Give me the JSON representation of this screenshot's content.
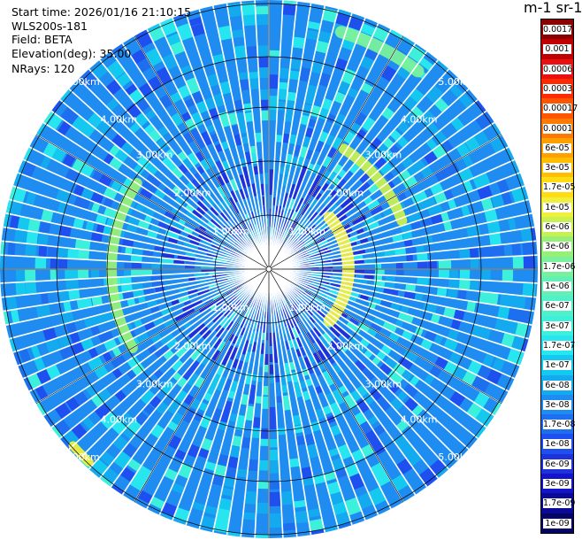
{
  "info": {
    "start_time": "Start time: 2026/01/16 21:10:15",
    "instrument": "WLS200s-181",
    "field": "Field: BETA",
    "elevation": "Elevation(deg): 35.00",
    "nrays": "NRays: 120"
  },
  "colorbar": {
    "title": "m-1 sr-1",
    "levels": [
      "0.0017",
      "0.001",
      "0.0006",
      "0.0003",
      "0.00017",
      "0.0001",
      "6e-05",
      "3e-05",
      "1.7e-05",
      "1e-05",
      "6e-06",
      "3e-06",
      "1.7e-06",
      "1e-06",
      "6e-07",
      "3e-07",
      "1.7e-07",
      "1e-07",
      "6e-08",
      "3e-08",
      "1.7e-08",
      "1e-08",
      "6e-09",
      "3e-09",
      "1.7e-09",
      "1e-09"
    ],
    "colors": [
      "#8b0000",
      "#c00000",
      "#e81010",
      "#ff2a00",
      "#ff5500",
      "#ff7a00",
      "#ffa000",
      "#ffbe00",
      "#ffdc14",
      "#f0f03c",
      "#c8f050",
      "#96f078",
      "#78f09c",
      "#64f0b4",
      "#50f0c8",
      "#3cf0dc",
      "#28e6f0",
      "#14c8f0",
      "#14aaf0",
      "#1e8cf0",
      "#1e6ef0",
      "#1e50f0",
      "#1e32dc",
      "#1414c8",
      "#0a0a96",
      "#050564"
    ]
  },
  "range_rings": {
    "labels": [
      "1.00km",
      "2.00km",
      "3.00km",
      "4.00km",
      "5.00km"
    ]
  },
  "echoes": [
    {
      "name": "near-arc-east",
      "color": "#f0f03c"
    },
    {
      "name": "mid-arc-northeast",
      "color": "#c8f050"
    },
    {
      "name": "far-arc-west",
      "color": "#96f078"
    },
    {
      "name": "edge-arc-north",
      "color": "#78f09c"
    },
    {
      "name": "edge-spot-southwest",
      "color": "#f0f03c"
    }
  ]
}
